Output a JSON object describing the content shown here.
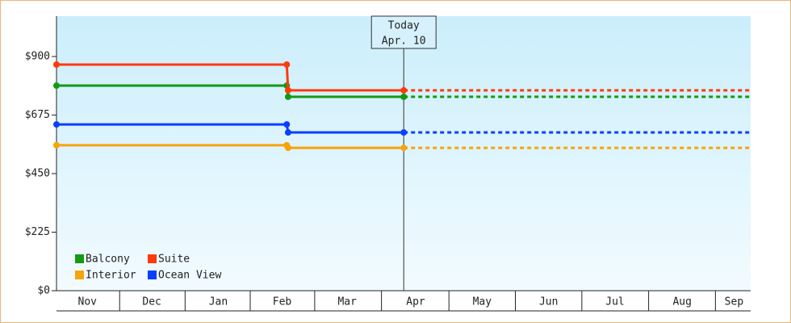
{
  "chart_data": {
    "type": "step-line",
    "xlim": [
      0.065,
      10.51
    ],
    "xticks": [
      {
        "value": 0.53,
        "label": "Nov"
      },
      {
        "value": 1.5,
        "label": "Dec"
      },
      {
        "value": 2.5,
        "label": "Jan"
      },
      {
        "value": 3.46,
        "label": "Feb"
      },
      {
        "value": 4.44,
        "label": "Mar"
      },
      {
        "value": 5.47,
        "label": "Apr"
      },
      {
        "value": 6.47,
        "label": "May"
      },
      {
        "value": 7.47,
        "label": "Jun"
      },
      {
        "value": 8.47,
        "label": "Jul"
      },
      {
        "value": 9.48,
        "label": "Aug"
      },
      {
        "value": 10.26,
        "label": "Sep"
      }
    ],
    "ylim": [
      0,
      1055
    ],
    "yticks": [
      {
        "value": 0,
        "label": "$0"
      },
      {
        "value": 225,
        "label": "$225"
      },
      {
        "value": 450,
        "label": "$450"
      },
      {
        "value": 675,
        "label": "$675"
      },
      {
        "value": 900,
        "label": "$900"
      }
    ],
    "today": {
      "label": "Today",
      "date": "Apr. 10",
      "x": 5.29
    },
    "projection": "dashed",
    "series": [
      {
        "name": "Balcony",
        "color": "#139a13",
        "x": [
          0.065,
          3.53,
          3.55,
          5.29
        ],
        "values": [
          788,
          788,
          745,
          745
        ]
      },
      {
        "name": "Suite",
        "color": "#ff3a0a",
        "x": [
          0.065,
          3.53,
          3.55,
          5.29
        ],
        "values": [
          869,
          869,
          770,
          770
        ]
      },
      {
        "name": "Interior",
        "color": "#f5a40a",
        "x": [
          0.065,
          3.53,
          3.55,
          5.29
        ],
        "values": [
          559,
          559,
          549,
          549
        ]
      },
      {
        "name": "Ocean View",
        "color": "#0a3fff",
        "x": [
          0.065,
          3.53,
          3.55,
          5.29
        ],
        "values": [
          639,
          639,
          608,
          608
        ]
      }
    ]
  }
}
